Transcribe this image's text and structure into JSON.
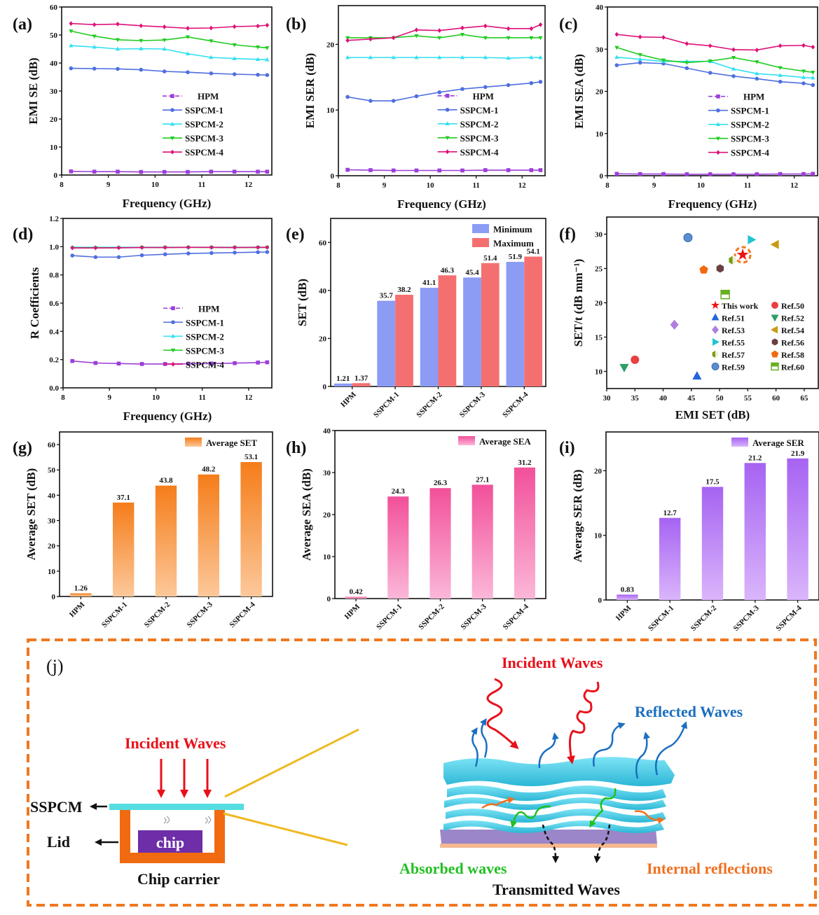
{
  "figure": {
    "labels": [
      "(a)",
      "(b)",
      "(c)",
      "(d)",
      "(e)",
      "(f)",
      "(g)",
      "(h)",
      "(i)",
      "(j)"
    ]
  },
  "colors": {
    "HPM": "#9b3fd8",
    "SSPCM-1": "#4f6fe0",
    "SSPCM-2": "#33e0f0",
    "SSPCM-3": "#22cc22",
    "SSPCM-4": "#dd1177",
    "minimum": "#8c9cf5",
    "maximum": "#f47070",
    "avg_set": "#f57d1a",
    "avg_sea": "#f2509a",
    "avg_ser": "#b06af5",
    "frame": "#f07820"
  },
  "chart_data": [
    {
      "id": "a",
      "type": "line",
      "panel_label": "(a)",
      "title": "",
      "xlabel": "Frequency (GHz)",
      "ylabel": "EMI SE (dB)",
      "xlim": [
        8,
        12.5
      ],
      "ylim": [
        0,
        60
      ],
      "xticks": [
        8,
        9,
        10,
        11,
        12
      ],
      "yticks": [
        0,
        10,
        20,
        30,
        40,
        50,
        60
      ],
      "legend": "center-right",
      "x": [
        8.2,
        8.7,
        9.2,
        9.7,
        10.2,
        10.7,
        11.2,
        11.7,
        12.2,
        12.4
      ],
      "series": [
        {
          "name": "HPM",
          "marker": "square",
          "values": [
            1.3,
            1.2,
            1.2,
            1.1,
            1.1,
            1.1,
            1.2,
            1.2,
            1.2,
            1.2
          ]
        },
        {
          "name": "SSPCM-1",
          "marker": "circle",
          "values": [
            38.1,
            38.0,
            37.9,
            37.6,
            37.0,
            36.7,
            36.3,
            36.0,
            35.8,
            35.7
          ]
        },
        {
          "name": "SSPCM-2",
          "marker": "triangle-up",
          "values": [
            46.2,
            45.7,
            45.0,
            45.1,
            45.0,
            43.3,
            42.0,
            41.6,
            41.3,
            41.2
          ]
        },
        {
          "name": "SSPCM-3",
          "marker": "triangle-down",
          "values": [
            51.4,
            49.6,
            48.3,
            48.0,
            48.2,
            49.3,
            47.9,
            46.5,
            45.7,
            45.4
          ]
        },
        {
          "name": "SSPCM-4",
          "marker": "diamond",
          "values": [
            54.1,
            53.7,
            53.9,
            53.3,
            52.9,
            52.4,
            52.5,
            53.0,
            53.2,
            53.5
          ]
        }
      ]
    },
    {
      "id": "b",
      "type": "line",
      "panel_label": "(b)",
      "title": "",
      "xlabel": "Frequency (GHz)",
      "ylabel": "EMI SER (dB)",
      "xlim": [
        8,
        12.5
      ],
      "ylim": [
        0,
        25.9
      ],
      "xticks": [
        8,
        9,
        10,
        11,
        12
      ],
      "yticks": [
        0,
        10,
        20
      ],
      "legend": "center-right",
      "x": [
        8.2,
        8.7,
        9.2,
        9.7,
        10.2,
        10.7,
        11.2,
        11.7,
        12.2,
        12.4
      ],
      "series": [
        {
          "name": "HPM",
          "marker": "square",
          "values": [
            0.9,
            0.85,
            0.8,
            0.8,
            0.8,
            0.8,
            0.85,
            0.85,
            0.85,
            0.85
          ]
        },
        {
          "name": "SSPCM-1",
          "marker": "circle",
          "values": [
            12.0,
            11.4,
            11.4,
            12.1,
            12.7,
            13.2,
            13.5,
            13.8,
            14.1,
            14.3
          ]
        },
        {
          "name": "SSPCM-2",
          "marker": "triangle-up",
          "values": [
            18.0,
            18.0,
            18.0,
            18.0,
            18.0,
            18.0,
            18.0,
            17.9,
            18.0,
            18.0
          ]
        },
        {
          "name": "SSPCM-3",
          "marker": "triangle-down",
          "values": [
            21.0,
            21.0,
            21.0,
            21.3,
            21.0,
            21.5,
            21.0,
            21.0,
            21.0,
            21.0
          ]
        },
        {
          "name": "SSPCM-4",
          "marker": "diamond",
          "values": [
            20.6,
            20.8,
            21.0,
            22.2,
            22.1,
            22.5,
            22.8,
            22.4,
            22.4,
            23.0
          ]
        }
      ]
    },
    {
      "id": "c",
      "type": "line",
      "panel_label": "(c)",
      "title": "",
      "xlabel": "Frequency (GHz)",
      "ylabel": "EMI SEA (dB)",
      "xlim": [
        8,
        12.5
      ],
      "ylim": [
        0,
        40
      ],
      "xticks": [
        8,
        9,
        10,
        11,
        12
      ],
      "yticks": [
        0,
        10,
        20,
        30,
        40
      ],
      "legend": "center-right",
      "x": [
        8.2,
        8.7,
        9.2,
        9.7,
        10.2,
        10.7,
        11.2,
        11.7,
        12.2,
        12.4
      ],
      "series": [
        {
          "name": "HPM",
          "marker": "square",
          "values": [
            0.45,
            0.4,
            0.4,
            0.35,
            0.35,
            0.35,
            0.35,
            0.4,
            0.4,
            0.45
          ]
        },
        {
          "name": "SSPCM-1",
          "marker": "circle",
          "values": [
            26.2,
            26.8,
            26.6,
            25.5,
            24.4,
            23.6,
            23.0,
            22.3,
            21.9,
            21.5
          ]
        },
        {
          "name": "SSPCM-2",
          "marker": "triangle-up",
          "values": [
            28.1,
            27.6,
            27.1,
            27.1,
            27.1,
            25.3,
            24.2,
            23.8,
            23.3,
            23.2
          ]
        },
        {
          "name": "SSPCM-3",
          "marker": "triangle-down",
          "values": [
            30.4,
            28.7,
            27.4,
            26.8,
            27.2,
            28.0,
            27.0,
            25.6,
            24.8,
            24.5
          ]
        },
        {
          "name": "SSPCM-4",
          "marker": "diamond",
          "values": [
            33.5,
            32.9,
            32.8,
            31.3,
            30.8,
            29.9,
            29.8,
            30.8,
            30.9,
            30.5
          ]
        }
      ]
    },
    {
      "id": "d",
      "type": "line",
      "panel_label": "(d)",
      "title": "",
      "xlabel": "Frequency (GHz)",
      "ylabel": "R Coefficients",
      "xlim": [
        8,
        12.5
      ],
      "ylim": [
        0,
        1.2
      ],
      "xticks": [
        8,
        9,
        10,
        11,
        12
      ],
      "yticks": [
        0.0,
        0.2,
        0.4,
        0.6,
        0.8,
        1.0,
        1.2
      ],
      "legend": "center-right",
      "x": [
        8.2,
        8.7,
        9.2,
        9.7,
        10.2,
        10.7,
        11.2,
        11.7,
        12.2,
        12.4
      ],
      "series": [
        {
          "name": "HPM",
          "marker": "square",
          "values": [
            0.19,
            0.176,
            0.172,
            0.169,
            0.169,
            0.171,
            0.172,
            0.175,
            0.179,
            0.181
          ]
        },
        {
          "name": "SSPCM-1",
          "marker": "circle",
          "values": [
            0.937,
            0.926,
            0.926,
            0.939,
            0.946,
            0.952,
            0.955,
            0.958,
            0.961,
            0.962
          ]
        },
        {
          "name": "SSPCM-2",
          "marker": "triangle-up",
          "values": [
            0.996,
            0.996,
            0.996,
            0.996,
            0.996,
            0.996,
            0.996,
            0.996,
            0.996,
            0.996
          ]
        },
        {
          "name": "SSPCM-3",
          "marker": "triangle-down",
          "values": [
            0.992,
            0.992,
            0.992,
            0.994,
            0.994,
            0.995,
            0.994,
            0.994,
            0.994,
            0.994
          ]
        },
        {
          "name": "SSPCM-4",
          "marker": "diamond",
          "values": [
            0.991,
            0.991,
            0.992,
            0.994,
            0.994,
            0.995,
            0.995,
            0.994,
            0.995,
            0.995
          ]
        }
      ]
    },
    {
      "id": "e",
      "type": "bar",
      "panel_label": "(e)",
      "title": "",
      "xlabel": "",
      "ylabel": "SET (dB)",
      "ylim": [
        0,
        70
      ],
      "yticks": [
        0,
        20,
        40,
        60
      ],
      "legend": "top-right",
      "categories": [
        "HPM",
        "SSPCM-1",
        "SSPCM-2",
        "SSPCM-3",
        "SSPCM-4"
      ],
      "series": [
        {
          "name": "Minimum",
          "values": [
            1.21,
            35.7,
            41.1,
            45.4,
            51.9
          ],
          "labels": [
            "1.21",
            "35.7",
            "41.1",
            "45.4",
            "51.9"
          ]
        },
        {
          "name": "Maximum",
          "values": [
            1.37,
            38.2,
            46.3,
            51.4,
            54.1
          ],
          "labels": [
            "1.37",
            "38.2",
            "46.3",
            "51.4",
            "54.1"
          ]
        }
      ]
    },
    {
      "id": "f",
      "type": "scatter",
      "panel_label": "(f)",
      "title": "",
      "xlabel": "EMI SET (dB)",
      "ylabel": "SET/t (dB mm⁻¹)",
      "xlim": [
        30,
        67.5
      ],
      "ylim": [
        7.5,
        32.5
      ],
      "xticks": [
        30,
        35,
        40,
        45,
        50,
        55,
        60,
        65
      ],
      "yticks": [
        10,
        15,
        20,
        25,
        30
      ],
      "legend": "bottom-right",
      "points": [
        {
          "name": "This work",
          "x": 54.1,
          "y": 27.0,
          "marker": "star",
          "color": "#ee1111"
        },
        {
          "name": "Ref.50",
          "x": 35.0,
          "y": 11.7,
          "marker": "circle",
          "color": "#e84040"
        },
        {
          "name": "Ref.51",
          "x": 46.0,
          "y": 9.3,
          "marker": "triangle-up",
          "color": "#2266dd"
        },
        {
          "name": "Ref.52",
          "x": 33.1,
          "y": 10.6,
          "marker": "triangle-down",
          "color": "#2e9e66"
        },
        {
          "name": "Ref.53",
          "x": 42.0,
          "y": 16.8,
          "marker": "diamond",
          "color": "#b07ee0"
        },
        {
          "name": "Ref.54",
          "x": 59.9,
          "y": 28.5,
          "marker": "triangle-left",
          "color": "#c89a10"
        },
        {
          "name": "Ref.55",
          "x": 55.6,
          "y": 29.2,
          "marker": "triangle-right",
          "color": "#22c4d4"
        },
        {
          "name": "Ref.56",
          "x": 50.1,
          "y": 25.0,
          "marker": "hexagon",
          "color": "#6a4040"
        },
        {
          "name": "Ref.57",
          "x": 52.3,
          "y": 26.2,
          "marker": "half-hexagon",
          "color": "#7a9a10"
        },
        {
          "name": "Ref.58",
          "x": 47.2,
          "y": 24.8,
          "marker": "pentagon",
          "color": "#f06a10"
        },
        {
          "name": "Ref.59",
          "x": 44.4,
          "y": 29.5,
          "marker": "sphere",
          "color": "#5a8ed0"
        },
        {
          "name": "Ref.60",
          "x": 51.0,
          "y": 21.2,
          "marker": "half-square",
          "color": "#66b020"
        }
      ]
    },
    {
      "id": "g",
      "type": "bar",
      "panel_label": "(g)",
      "title": "",
      "xlabel": "",
      "ylabel": "Average SET (dB)",
      "ylim": [
        0,
        65
      ],
      "yticks": [
        0,
        10,
        20,
        30,
        40,
        50,
        60
      ],
      "legend": "top-right",
      "categories": [
        "HPM",
        "SSPCM-1",
        "SSPCM-2",
        "SSPCM-3",
        "SSPCM-4"
      ],
      "series": [
        {
          "name": "Average SET",
          "values": [
            1.26,
            37.1,
            43.8,
            48.2,
            53.1
          ],
          "labels": [
            "1.26",
            "37.1",
            "43.8",
            "48.2",
            "53.1"
          ]
        }
      ]
    },
    {
      "id": "h",
      "type": "bar",
      "panel_label": "(h)",
      "title": "",
      "xlabel": "",
      "ylabel": "Average SEA (dB)",
      "ylim": [
        0,
        40
      ],
      "yticks": [
        0,
        10,
        20,
        30,
        40
      ],
      "legend": "top-right",
      "categories": [
        "HPM",
        "SSPCM-1",
        "SSPCM-2",
        "SSPCM-3",
        "SSPCM-4"
      ],
      "series": [
        {
          "name": "Average SEA",
          "values": [
            0.42,
            24.3,
            26.3,
            27.1,
            31.2
          ],
          "labels": [
            "0.42",
            "24.3",
            "26.3",
            "27.1",
            "31.2"
          ]
        }
      ]
    },
    {
      "id": "i",
      "type": "bar",
      "panel_label": "(i)",
      "title": "",
      "xlabel": "",
      "ylabel": "Average SER (dB)",
      "ylim": [
        0,
        26
      ],
      "yticks": [
        0,
        10,
        20
      ],
      "legend": "top-right",
      "categories": [
        "HPM",
        "SSPCM-1",
        "SSPCM-2",
        "SSPCM-3",
        "SSPCM-4"
      ],
      "series": [
        {
          "name": "Average SER",
          "values": [
            0.83,
            12.7,
            17.5,
            21.2,
            21.9
          ],
          "labels": [
            "0.83",
            "12.7",
            "17.5",
            "21.2",
            "21.9"
          ]
        }
      ]
    }
  ],
  "schematic": {
    "label": "(j)",
    "left": {
      "incident": "Incident Waves",
      "sspcm": "SSPCM",
      "lid": "Lid",
      "chip": "chip",
      "carrier": "Chip carrier"
    },
    "right": {
      "incident": "Incident Waves",
      "reflected": "Reflected Waves",
      "absorbed": "Absorbed waves",
      "internal": "Internal reflections",
      "transmitted": "Transmitted Waves"
    }
  }
}
